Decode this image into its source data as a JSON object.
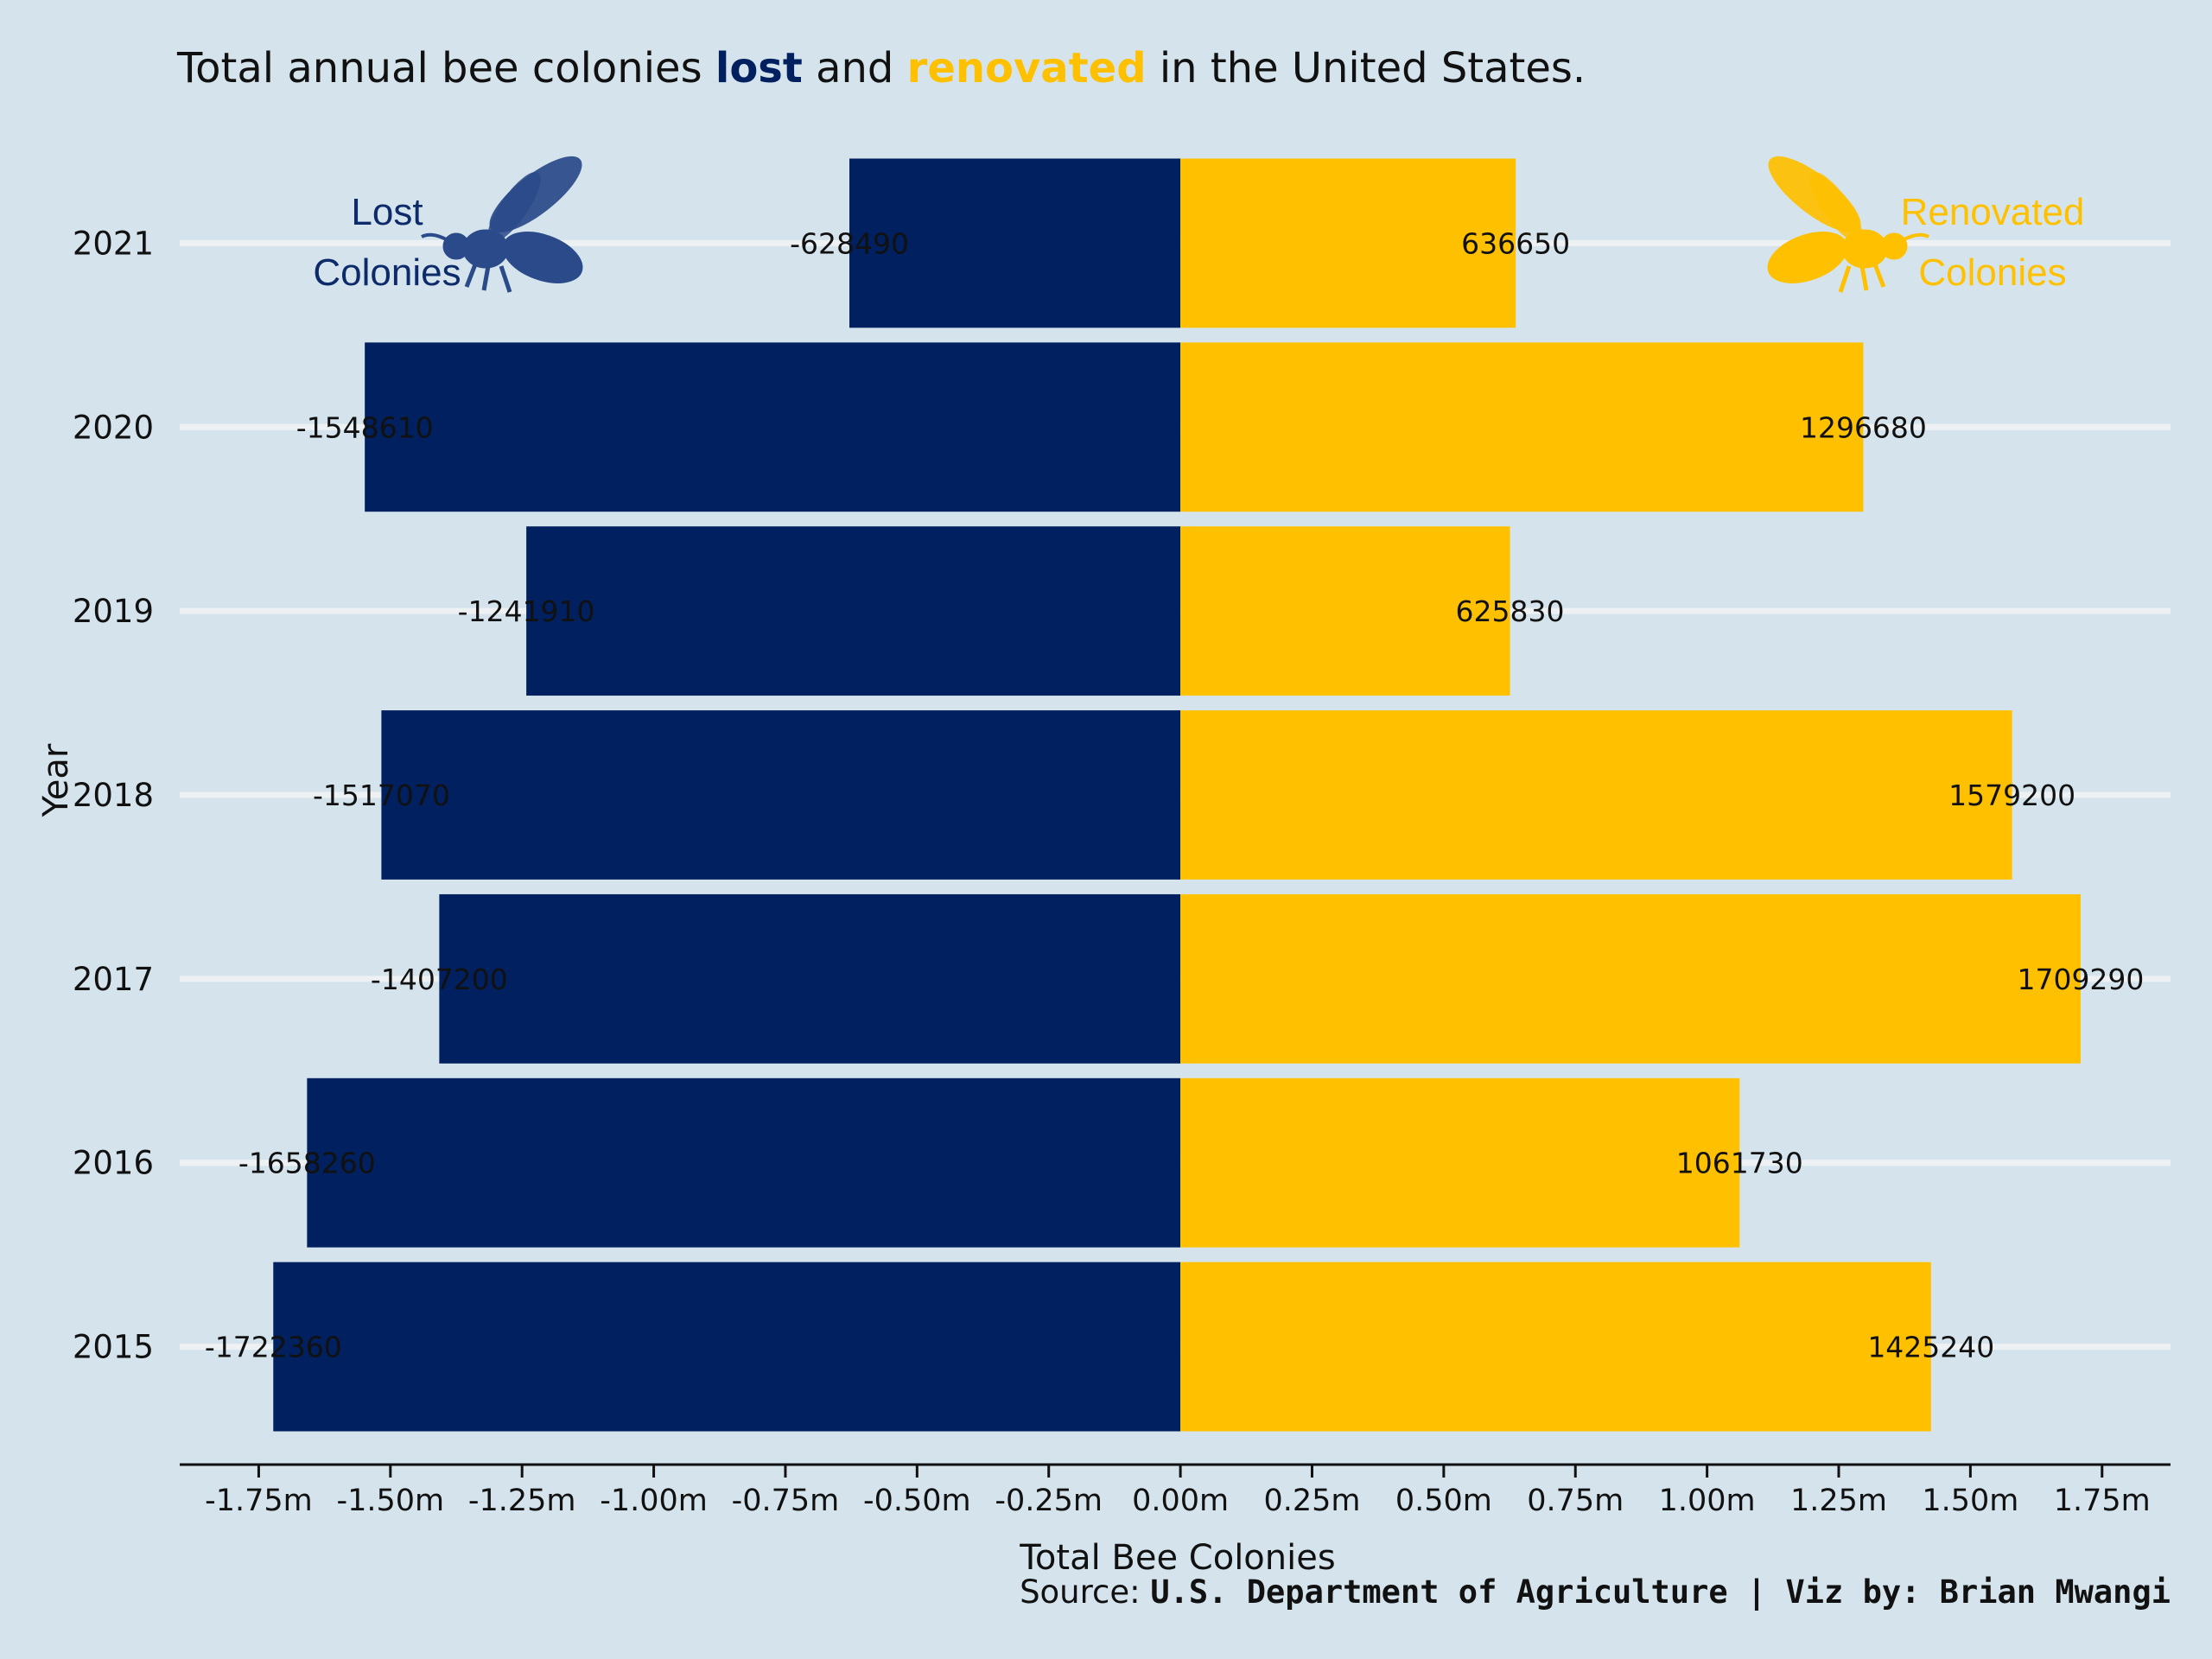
{
  "chart_data": {
    "type": "bar",
    "orientation": "horizontal",
    "diverging": true,
    "title": {
      "prefix": "Total annual bee colonies ",
      "lost_word": "lost",
      "middle": " and ",
      "renovated_word": "renovated",
      "suffix": " in the United States."
    },
    "xlabel": "Total Bee Colonies",
    "ylabel": "Year",
    "categories": [
      "2015",
      "2016",
      "2017",
      "2018",
      "2019",
      "2020",
      "2021"
    ],
    "series": [
      {
        "key": "lost",
        "values": [
          -1722360,
          -1658260,
          -1407200,
          -1517070,
          -1241910,
          -1548610,
          -628490
        ],
        "color": "#00205f"
      },
      {
        "key": "renovated",
        "values": [
          1425240,
          1061730,
          1709290,
          1579200,
          625830,
          1296680,
          636650
        ],
        "color": "#ffc000"
      }
    ],
    "xlim": [
      -1900000,
      1880000
    ],
    "xticks": [
      -1750000,
      -1500000,
      -1250000,
      -1000000,
      -750000,
      -500000,
      -250000,
      0,
      250000,
      500000,
      750000,
      1000000,
      1250000,
      1500000,
      1750000
    ],
    "xtick_labels": [
      "-1.75m",
      "-1.50m",
      "-1.25m",
      "-1.00m",
      "-0.75m",
      "-0.50m",
      "-0.25m",
      "0.00m",
      "0.25m",
      "0.50m",
      "0.75m",
      "1.00m",
      "1.25m",
      "1.50m",
      "1.75m"
    ],
    "grid": "horizontal",
    "annotations": {
      "lost": {
        "line1": "Lost",
        "line2": "Colonies",
        "color": "#0d2a6b",
        "icon": "bee-icon"
      },
      "renovated": {
        "line1": "Renovated",
        "line2": "Colonies",
        "color": "#ffc000",
        "icon": "bee-icon"
      }
    },
    "caption": {
      "prefix": "Source: ",
      "bold": "U.S. Department of Agriculture | Viz by: Brian Mwangi"
    }
  },
  "colors": {
    "background": "#d5e4ec",
    "gridline": "#eef1f4",
    "lost": "#00205f",
    "renovated": "#ffc000"
  }
}
